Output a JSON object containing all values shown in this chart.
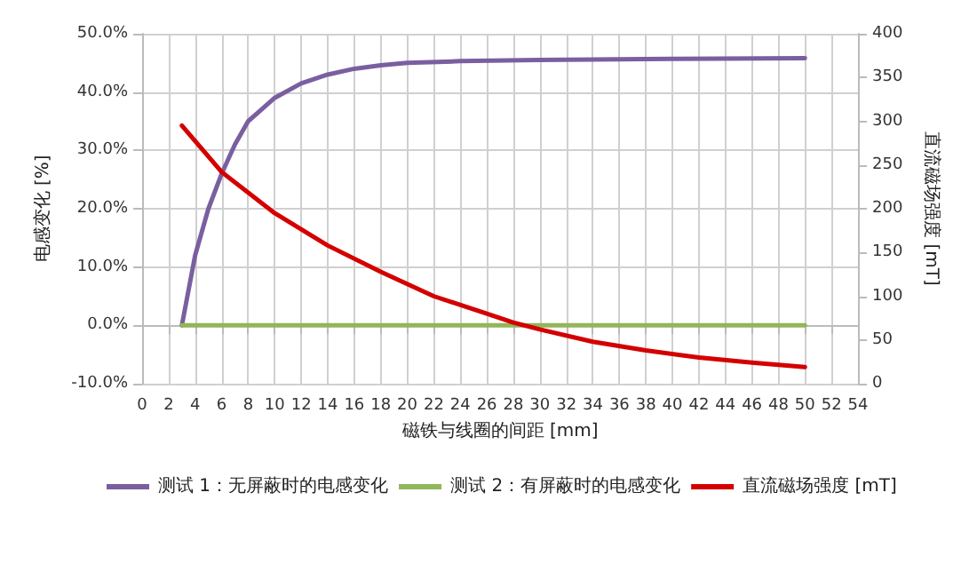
{
  "chart_data": {
    "type": "line",
    "xlabel": "磁铁与线圈的间距 [mm]",
    "ylabel": "电感变化 [%]",
    "y2label": "直流磁场强度 [mT]",
    "xlim": [
      0,
      54
    ],
    "xticks": [
      0,
      2,
      4,
      6,
      8,
      10,
      12,
      14,
      16,
      18,
      20,
      22,
      24,
      26,
      28,
      30,
      32,
      34,
      36,
      38,
      40,
      42,
      44,
      46,
      48,
      50,
      52,
      54
    ],
    "ylim": [
      -10,
      50
    ],
    "yticks": [
      {
        "value": -10,
        "label": "-10.0%"
      },
      {
        "value": 0,
        "label": "0.0%"
      },
      {
        "value": 10,
        "label": "10.0%"
      },
      {
        "value": 20,
        "label": "20.0%"
      },
      {
        "value": 30,
        "label": "30.0%"
      },
      {
        "value": 40,
        "label": "40.0%"
      },
      {
        "value": 50,
        "label": "50.0%"
      }
    ],
    "y2lim": [
      0,
      400
    ],
    "y2ticks": [
      0,
      50,
      100,
      150,
      200,
      250,
      300,
      350,
      400
    ],
    "grid": true,
    "legend": "bottom",
    "marker": "none",
    "line_style": "solid",
    "series": [
      {
        "name": "测试 1：无屏蔽时的电感变化",
        "color": "#7a5fa0",
        "x": [
          3,
          4,
          5,
          6,
          7,
          8,
          9,
          10,
          12,
          14,
          16,
          18,
          20,
          24,
          30,
          40,
          50
        ],
        "values": [
          0,
          12,
          20,
          26,
          31,
          35,
          37,
          39,
          41.5,
          43,
          44,
          44.6,
          45,
          45.3,
          45.5,
          45.7,
          45.8
        ]
      },
      {
        "name": "测试 2：有屏蔽时的电感变化",
        "color": "#92b55a",
        "x": [
          3,
          50
        ],
        "values": [
          0,
          0
        ]
      },
      {
        "name": "直流磁场强度 [mT]",
        "color": "#d40000",
        "axis": "y2",
        "x": [
          3,
          6,
          10,
          14,
          18,
          22,
          26,
          28,
          30,
          34,
          38,
          42,
          46,
          50
        ],
        "values": [
          295,
          242,
          195,
          158,
          128,
          100,
          80,
          70,
          62,
          48,
          38,
          30,
          24,
          19
        ]
      }
    ]
  }
}
